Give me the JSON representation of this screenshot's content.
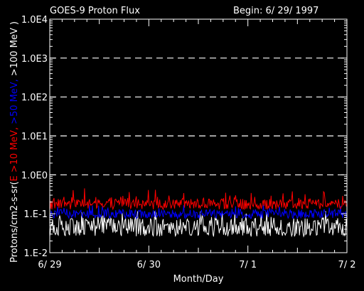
{
  "chart_data": {
    "type": "line",
    "title": "GOES-9 Proton Flux",
    "begin_label": "Begin: 6/ 29/ 1997",
    "xlabel": "Month/Day",
    "ylabel_parts": [
      {
        "text": "Protons/cm2-s-sr(",
        "color": "#ffffff"
      },
      {
        "text": "E >10 MeV, ",
        "color": "#ff0000"
      },
      {
        "text": ">50 MeV, ",
        "color": "#0000ff"
      },
      {
        "text": ">100 MeV )",
        "color": "#ffffff"
      }
    ],
    "y_scale": "log",
    "ylim": [
      0.01,
      10000
    ],
    "yticks": [
      {
        "value": 0.01,
        "label": "1.E-2"
      },
      {
        "value": 0.1,
        "label": "1.E-1"
      },
      {
        "value": 1,
        "label": "1.0E0"
      },
      {
        "value": 10,
        "label": "1.0E1"
      },
      {
        "value": 100,
        "label": "1.0E2"
      },
      {
        "value": 1000,
        "label": "1.0E3"
      },
      {
        "value": 10000,
        "label": "1.0E4"
      }
    ],
    "gridlines_at": [
      1,
      10,
      100,
      1000
    ],
    "xlim_days": [
      0,
      3
    ],
    "xticks": [
      {
        "day": 0,
        "label": "6/ 29"
      },
      {
        "day": 1,
        "label": "6/ 30"
      },
      {
        "day": 2,
        "label": "7/ 1"
      },
      {
        "day": 3,
        "label": "7/ 2"
      }
    ],
    "series": [
      {
        "name": ">100 MeV",
        "color": "#ffffff",
        "base": 0.04,
        "spread_min": 0.026,
        "spread_max": 0.08,
        "spike_max": 0.12
      },
      {
        "name": ">50 MeV",
        "color": "#0000ff",
        "base": 0.1,
        "spread_min": 0.075,
        "spread_max": 0.13,
        "spike_max": 0.17
      },
      {
        "name": ">10 MeV",
        "color": "#ff0000",
        "base": 0.17,
        "spread_min": 0.13,
        "spread_max": 0.24,
        "spike_max": 0.45
      }
    ]
  }
}
